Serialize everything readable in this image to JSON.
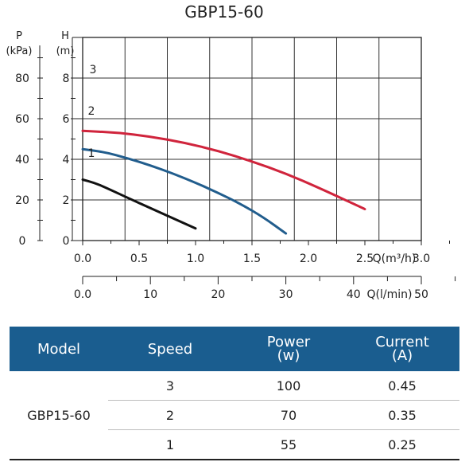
{
  "chart_data": {
    "type": "line",
    "title": "GBP15-60",
    "xlabel": "Q(m³/h)",
    "xlabel_secondary": "Q(l/min)",
    "ylabel": "H (m)",
    "ylabel_secondary": "P (kPa)",
    "ylabel_parts": {
      "letter": "H",
      "unit": "(m)"
    },
    "ylabel_secondary_parts": {
      "letter": "P",
      "unit": "(kPa)"
    },
    "xlim": [
      0,
      3.0
    ],
    "ylim": [
      0,
      10
    ],
    "x_ticks": [
      "0.0",
      "0.5",
      "1.0",
      "1.5",
      "2.0",
      "2.5",
      "3.0"
    ],
    "x_ticks_secondary": [
      "0.0",
      "10",
      "20",
      "30",
      "40",
      "50"
    ],
    "y_ticks": [
      "0",
      "2",
      "4",
      "6",
      "8"
    ],
    "y_ticks_secondary": [
      "0",
      "20",
      "40",
      "60",
      "80"
    ],
    "grid": true,
    "series": [
      {
        "name": "3",
        "color": "#d0243c",
        "x": [
          0,
          0.3,
          0.6,
          0.9,
          1.2,
          1.5,
          1.8,
          2.1,
          2.5
        ],
        "y": [
          5.4,
          5.32,
          5.12,
          4.82,
          4.42,
          3.9,
          3.3,
          2.58,
          1.55
        ]
      },
      {
        "name": "2",
        "color": "#215d8d",
        "x": [
          0,
          0.2,
          0.4,
          0.6,
          0.8,
          1.0,
          1.2,
          1.4,
          1.6,
          1.8
        ],
        "y": [
          4.5,
          4.35,
          4.05,
          3.7,
          3.3,
          2.85,
          2.35,
          1.8,
          1.15,
          0.35
        ]
      },
      {
        "name": "1",
        "color": "#111111",
        "x": [
          0,
          0.1,
          0.2,
          0.4,
          0.6,
          0.8,
          1.0
        ],
        "y": [
          3.0,
          2.85,
          2.62,
          2.1,
          1.6,
          1.1,
          0.6
        ]
      }
    ]
  },
  "table": {
    "headers": {
      "model": "Model",
      "speed": "Speed",
      "power": "Power",
      "power_unit": "(w)",
      "current": "Current",
      "current_unit": "(A)"
    },
    "model": "GBP15-60",
    "rows": [
      {
        "speed": "3",
        "power": "100",
        "current": "0.45"
      },
      {
        "speed": "2",
        "power": "70",
        "current": "0.35"
      },
      {
        "speed": "1",
        "power": "55",
        "current": "0.25"
      }
    ]
  }
}
